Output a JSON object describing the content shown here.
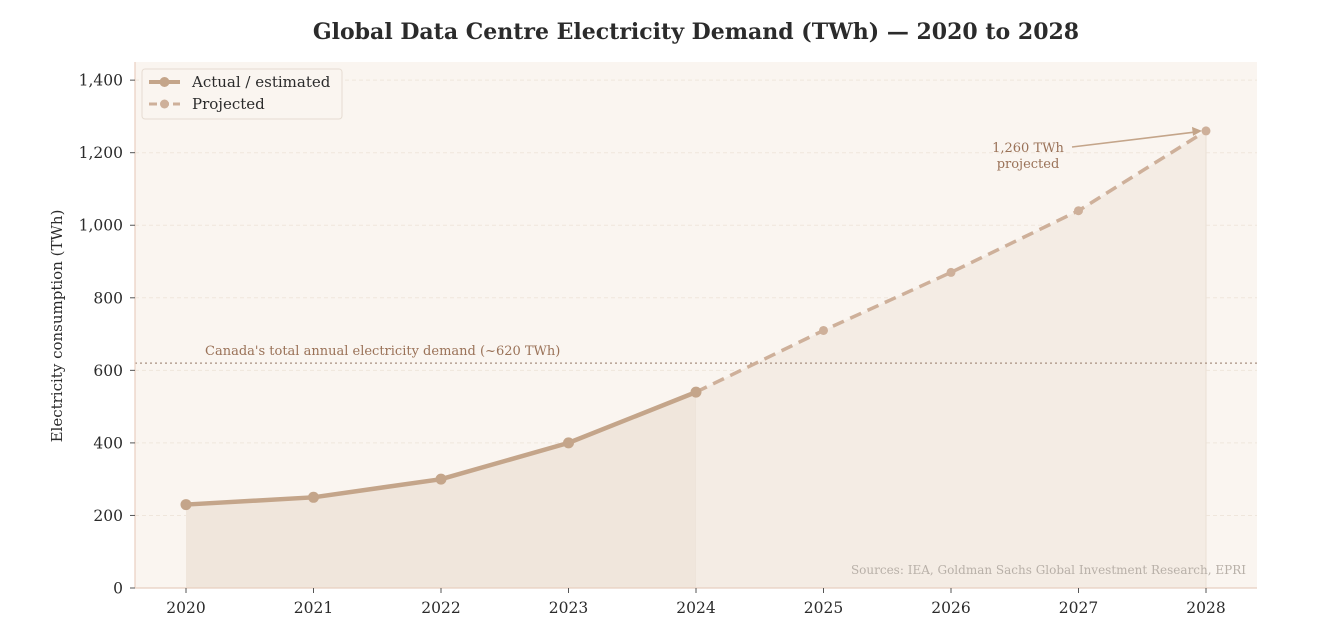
{
  "chart_data": {
    "type": "line",
    "title": "Global Data Centre Electricity Demand (TWh) — 2020 to 2028",
    "xlabel": "",
    "ylabel": "Electricity consumption (TWh)",
    "ylim": [
      0,
      1450
    ],
    "xlim": [
      2019.6,
      2028.4
    ],
    "yticks": [
      0,
      200,
      400,
      600,
      800,
      1000,
      1200,
      1400
    ],
    "ytick_labels": [
      "0",
      "200",
      "400",
      "600",
      "800",
      "1,000",
      "1,200",
      "1,400"
    ],
    "xticks": [
      2020,
      2021,
      2022,
      2023,
      2024,
      2025,
      2026,
      2027,
      2028
    ],
    "xtick_labels": [
      "2020",
      "2021",
      "2022",
      "2023",
      "2024",
      "2025",
      "2026",
      "2027",
      "2028"
    ],
    "grid": true,
    "legend_position": "top-left",
    "series": [
      {
        "name": "Actual / estimated",
        "style": "solid",
        "x": [
          2020,
          2021,
          2022,
          2023,
          2024
        ],
        "values": [
          230,
          250,
          300,
          400,
          540
        ]
      },
      {
        "name": "Projected",
        "style": "dashed",
        "x": [
          2024,
          2025,
          2026,
          2027,
          2028
        ],
        "values": [
          540,
          710,
          870,
          1040,
          1260
        ]
      }
    ],
    "reference_line": {
      "value": 620,
      "label": "Canada's total annual electricity demand (~620 TWh)"
    },
    "annotations": [
      {
        "text_line1": "1,260 TWh",
        "text_line2": "projected",
        "x": 2028,
        "y": 1260
      }
    ],
    "source_note": "Sources: IEA, Goldman Sachs Global Investment Research, EPRI",
    "colors": {
      "line": "#c4a58a",
      "projected_line": "#ceb09a",
      "plot_bg": "#faf5f0",
      "fill": "#f0e6dc",
      "grid": "#efe6dc",
      "axis": "#e8cfc0",
      "reference": "#a89080",
      "annotation_text": "#9a7258"
    }
  }
}
